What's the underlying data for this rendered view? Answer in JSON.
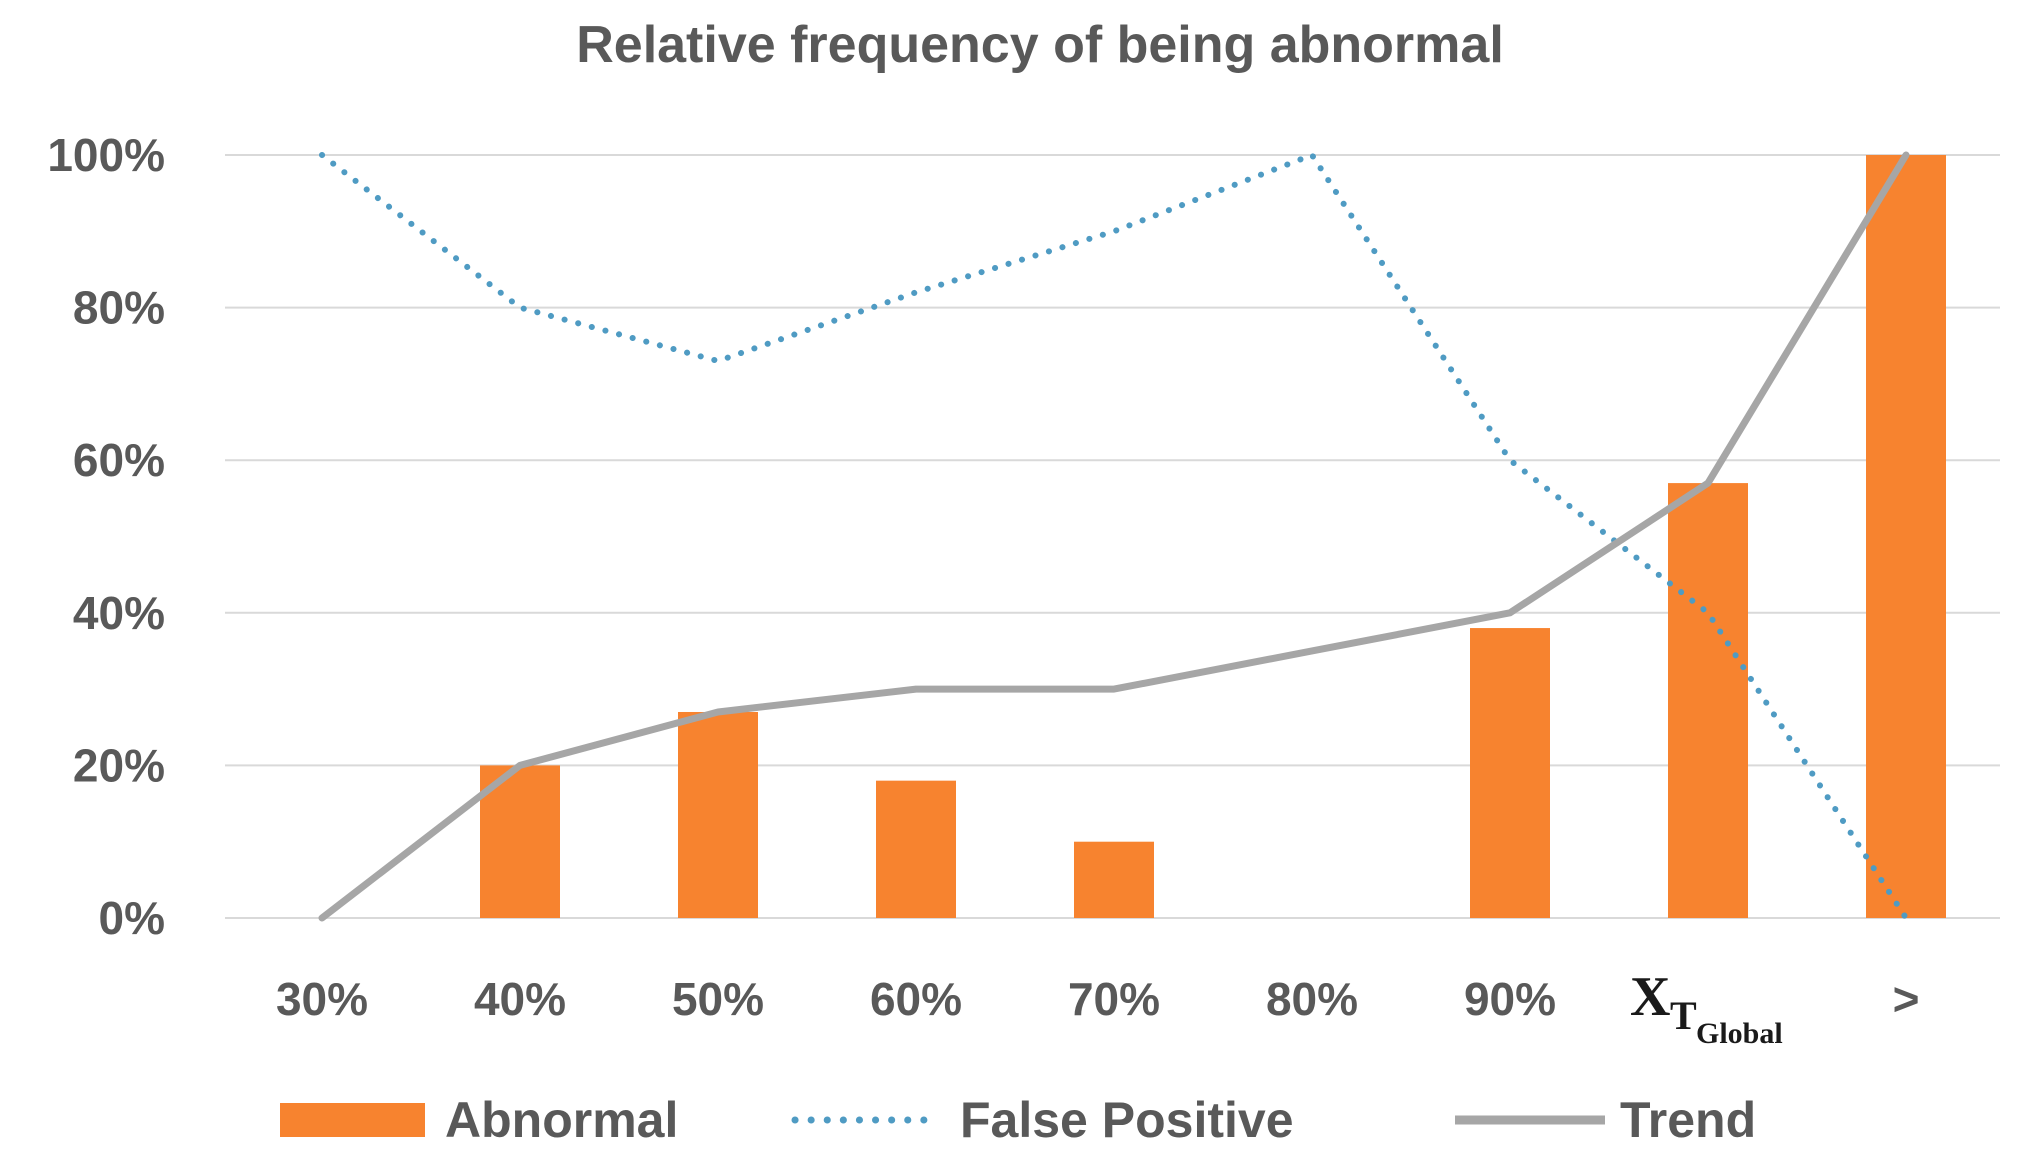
{
  "chart_data": {
    "type": "bar",
    "title": "Relative frequency of being abnormal",
    "categories": [
      "30%",
      "40%",
      "50%",
      "60%",
      "70%",
      "80%",
      "90%",
      "X_T_Global",
      ">"
    ],
    "category_labels": {
      "x_symbol_main": "X",
      "x_symbol_sub1": "T",
      "x_symbol_sub2": "Global"
    },
    "series": [
      {
        "name": "Abnormal",
        "type": "bar",
        "color": "#f7832f",
        "values": [
          0,
          20,
          27,
          18,
          10,
          0,
          38,
          57,
          100
        ]
      },
      {
        "name": "False Positive",
        "type": "line",
        "style": "dotted",
        "color": "#4f9bc3",
        "values": [
          100,
          80,
          73,
          82,
          90,
          100,
          60,
          40,
          0
        ]
      },
      {
        "name": "Trend",
        "type": "line",
        "style": "solid",
        "color": "#a6a6a6",
        "values": [
          0,
          20,
          27,
          30,
          30,
          35,
          40,
          57,
          100
        ]
      }
    ],
    "yticks": [
      "0%",
      "20%",
      "40%",
      "60%",
      "80%",
      "100%"
    ],
    "ylim": [
      0,
      100
    ],
    "grid": true,
    "legend_position": "bottom"
  }
}
